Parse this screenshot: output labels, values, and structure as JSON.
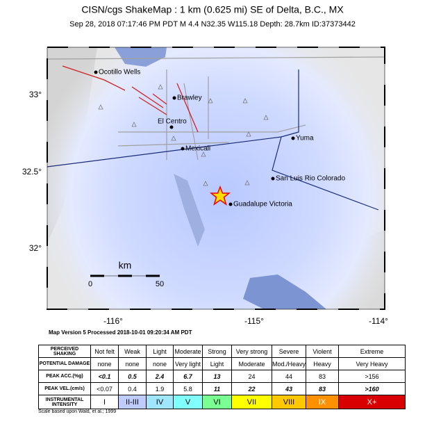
{
  "header": {
    "title": "CISN/cgs ShakeMap : 1 km (0.625 mi) SE of Delta, B.C., MX",
    "subtitle": "Sep 28, 2018 07:17:46 PM PDT   M 4.4   N32.35 W115.18   Depth: 28.7km   ID:37373442"
  },
  "map": {
    "places": [
      {
        "label": "Ocotillo Wells"
      },
      {
        "label": "Brawley"
      },
      {
        "label": "El Centro"
      },
      {
        "label": "Mexicali"
      },
      {
        "label": "Yuma"
      },
      {
        "label": "San Luis Rio Colorado"
      },
      {
        "label": "Guadalupe Victoria"
      }
    ],
    "lat_labels": [
      "33°",
      "32.5°",
      "32°"
    ],
    "lon_labels": [
      "-116°",
      "-115°",
      "-114°"
    ],
    "scale": {
      "unit": "km",
      "start": "0",
      "end": "50"
    }
  },
  "footer": {
    "processed": "Map Version 5 Processed 2018-10-01 09:20:34 AM PDT"
  },
  "legend": {
    "row_labels": [
      "PERCEIVED SHAKING",
      "POTENTIAL DAMAGE",
      "PEAK ACC.(%g)",
      "PEAK VEL.(cm/s)",
      "INSTRUMENTAL INTENSITY"
    ],
    "rows": [
      [
        "Not felt",
        "Weak",
        "Light",
        "Moderate",
        "Strong",
        "Very strong",
        "Severe",
        "Violent",
        "Extreme"
      ],
      [
        "none",
        "none",
        "none",
        "Very light",
        "Light",
        "Moderate",
        "Mod./Heavy",
        "Heavy",
        "Very Heavy"
      ],
      [
        "<0.1",
        "0.5",
        "2.4",
        "6.7",
        "13",
        "24",
        "44",
        "83",
        ">156"
      ],
      [
        "<0.07",
        "0.4",
        "1.9",
        "5.8",
        "11",
        "22",
        "43",
        "83",
        ">160"
      ],
      [
        "I",
        "II-III",
        "IV",
        "V",
        "VI",
        "VII",
        "VIII",
        "IX",
        "X+"
      ]
    ]
  },
  "note": "Scale based upon Wald, et al.; 1999"
}
